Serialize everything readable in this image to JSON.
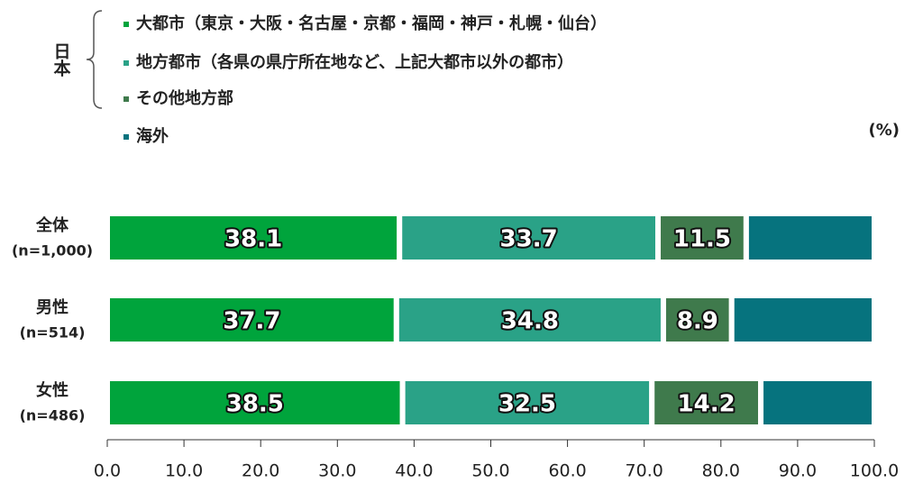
{
  "chart_data": {
    "type": "stacked-bar-horizontal",
    "unit_label": "(%)",
    "legend_group": "日本",
    "categories": [
      "全体",
      "男性",
      "女性"
    ],
    "sample_sizes": [
      "(n=1,000)",
      "(n=514)",
      "(n=486)"
    ],
    "series": [
      {
        "name": "大都市（東京・大阪・名古屋・京都・福岡・神戸・札幌・仙台）",
        "color": "#00a43c",
        "values": [
          38.1,
          37.7,
          38.5
        ],
        "show_labels": true
      },
      {
        "name": "地方都市（各県の県庁所在地など、上記大都市以外の都市）",
        "color": "#2aa287",
        "values": [
          33.7,
          34.8,
          32.5
        ],
        "show_labels": true
      },
      {
        "name": "その他地方部",
        "color": "#3f7a4c",
        "values": [
          11.5,
          8.9,
          14.2
        ],
        "show_labels": true
      },
      {
        "name": "海外",
        "color": "#06737e",
        "values": [
          16.7,
          18.6,
          14.8
        ],
        "show_labels": false
      }
    ],
    "xlim": [
      0,
      100
    ],
    "xticks": [
      {
        "value": 0,
        "label": "0.0"
      },
      {
        "value": 10,
        "label": "10.0"
      },
      {
        "value": 20,
        "label": "20.0"
      },
      {
        "value": 30,
        "label": "30.0"
      },
      {
        "value": 40,
        "label": "40.0"
      },
      {
        "value": 50,
        "label": "50.0"
      },
      {
        "value": 60,
        "label": "60.0"
      },
      {
        "value": 70,
        "label": "70.0"
      },
      {
        "value": 80,
        "label": "80.0"
      },
      {
        "value": 90,
        "label": "90.0"
      },
      {
        "value": 100,
        "label": "100.0"
      }
    ]
  }
}
